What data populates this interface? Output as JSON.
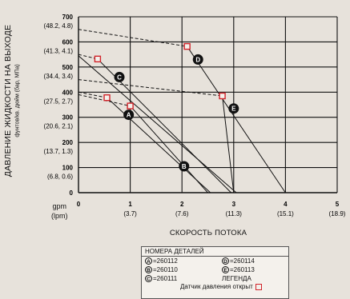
{
  "chart_data": {
    "type": "line",
    "ylabel": "ДАВЛЕНИЕ ЖИДКОСТИ НА ВЫХОДЕ",
    "ylabel_sub": "фунтов/кв. дюйм (бар, МПа)",
    "xlabel": "СКОРОСТЬ ПОТОКА",
    "x_unit_primary": "gpm",
    "x_unit_secondary": "(lpm)",
    "xlim": [
      0,
      5
    ],
    "ylim": [
      0,
      700
    ],
    "x_ticks": [
      {
        "value": 0,
        "label": "0",
        "sub": ""
      },
      {
        "value": 1,
        "label": "1",
        "sub": "(3.7)"
      },
      {
        "value": 2,
        "label": "2",
        "sub": "(7.6)"
      },
      {
        "value": 3,
        "label": "3",
        "sub": "(11.3)"
      },
      {
        "value": 4,
        "label": "4",
        "sub": "(15.1)"
      },
      {
        "value": 5,
        "label": "5",
        "sub": "(18.9)"
      }
    ],
    "y_ticks": [
      {
        "value": 0,
        "label": "0",
        "sub": ""
      },
      {
        "value": 100,
        "label": "100",
        "sub": "(6.8, 0.6)"
      },
      {
        "value": 200,
        "label": "200",
        "sub": "(13.7, 1.3)"
      },
      {
        "value": 300,
        "label": "300",
        "sub": "(20.6, 2.1)"
      },
      {
        "value": 400,
        "label": "400",
        "sub": "(27.5, 2.7)"
      },
      {
        "value": 500,
        "label": "500",
        "sub": "(34.4, 3.4)"
      },
      {
        "value": 600,
        "label": "600",
        "sub": "(41.3, 4.1)"
      },
      {
        "value": 700,
        "label": "700",
        "sub": "(48.2, 4.8)"
      }
    ],
    "series": [
      {
        "id": "A",
        "x": [
          0,
          1.0,
          2.5
        ],
        "y": [
          390,
          345,
          0
        ],
        "label_at": [
          0.97,
          310
        ]
      },
      {
        "id": "B",
        "x": [
          0,
          0.55,
          2.55
        ],
        "y": [
          400,
          378,
          0
        ],
        "label_at": [
          2.04,
          105
        ]
      },
      {
        "id": "C",
        "x": [
          0,
          0.37,
          2.95
        ],
        "y": [
          550,
          532,
          0
        ],
        "label_at": [
          0.79,
          460
        ]
      },
      {
        "id": "D",
        "x": [
          0,
          2.1,
          4.0
        ],
        "y": [
          650,
          582,
          0
        ],
        "label_at": [
          2.31,
          530
        ]
      },
      {
        "id": "E",
        "x": [
          0,
          2.78,
          3.0
        ],
        "y": [
          450,
          385,
          0
        ],
        "label_at": [
          3.0,
          335
        ]
      }
    ],
    "extra_lines": [
      {
        "x": [
          0,
          3.05
        ],
        "y": [
          545,
          0
        ]
      }
    ],
    "relief_points": [
      {
        "series": "A",
        "x": 1.0,
        "y": 345
      },
      {
        "series": "B",
        "x": 0.55,
        "y": 378
      },
      {
        "series": "C",
        "x": 0.37,
        "y": 532
      },
      {
        "series": "D",
        "x": 2.1,
        "y": 582
      },
      {
        "series": "E",
        "x": 2.78,
        "y": 385
      }
    ],
    "marker_color": "#d1232a"
  },
  "legend": {
    "title": "НОМЕРА ДЕТАЛЕЙ",
    "rows": [
      {
        "left_key": "A",
        "left_value": "=260112",
        "right_key": "D",
        "right_value": "=260114"
      },
      {
        "left_key": "B",
        "left_value": "=260110",
        "right_key": "E",
        "right_value": "=260113"
      },
      {
        "left_key": "C",
        "left_value": "=260111",
        "right_text": "ЛЕГЕНДА"
      }
    ],
    "relief_text": "Датчик давления открыт"
  }
}
